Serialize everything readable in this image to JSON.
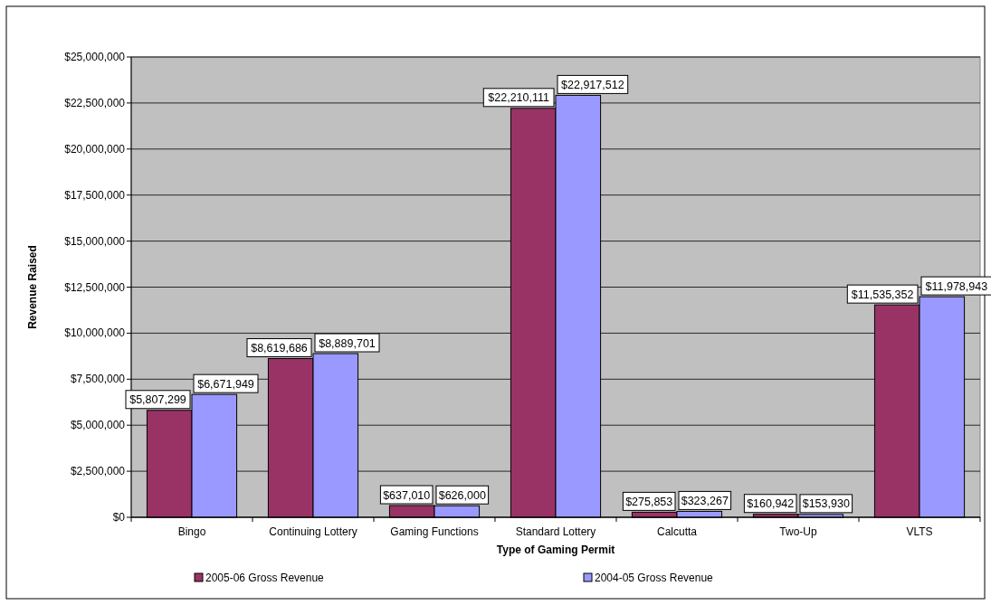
{
  "chart_data": {
    "type": "bar",
    "xlabel": "Type of Gaming Permit",
    "ylabel": "Revenue Raised",
    "categories": [
      "Bingo",
      "Continuing Lottery",
      "Gaming Functions",
      "Standard Lottery",
      "Calcutta",
      "Two-Up",
      "VLTS"
    ],
    "series": [
      {
        "name": "2005-06 Gross Revenue",
        "color": "#993366",
        "values": [
          5807299,
          8619686,
          637010,
          22210111,
          275853,
          160942,
          11535352
        ],
        "value_labels": [
          "$5,807,299",
          "$8,619,686",
          "$637,010",
          "$22,210,111",
          "$275,853",
          "$160,942",
          "$11,535,352"
        ]
      },
      {
        "name": "2004-05 Gross Revenue",
        "color": "#9999ff",
        "values": [
          6671949,
          8889701,
          626000,
          22917512,
          323267,
          153930,
          11978943
        ],
        "value_labels": [
          "$6,671,949",
          "$8,889,701",
          "$626,000",
          "$22,917,512",
          "$323,267",
          "$153,930",
          "$11,978,943"
        ]
      }
    ],
    "ylim": [
      0,
      25000000
    ],
    "yticks": [
      {
        "value": 0,
        "label": "$0"
      },
      {
        "value": 2500000,
        "label": "$2,500,000"
      },
      {
        "value": 5000000,
        "label": "$5,000,000"
      },
      {
        "value": 7500000,
        "label": "$7,500,000"
      },
      {
        "value": 10000000,
        "label": "$10,000,000"
      },
      {
        "value": 12500000,
        "label": "$12,500,000"
      },
      {
        "value": 15000000,
        "label": "$15,000,000"
      },
      {
        "value": 17500000,
        "label": "$17,500,000"
      },
      {
        "value": 20000000,
        "label": "$20,000,000"
      },
      {
        "value": 22500000,
        "label": "$22,500,000"
      },
      {
        "value": 25000000,
        "label": "$25,000,000"
      }
    ],
    "grid": "y",
    "legend": "bottom"
  }
}
